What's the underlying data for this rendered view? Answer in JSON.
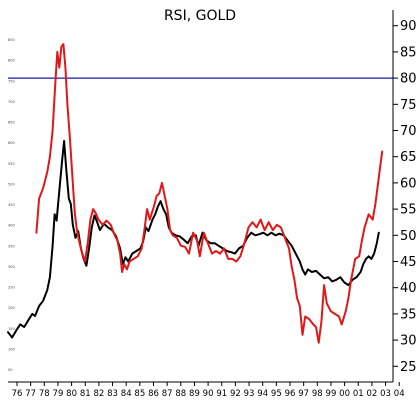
{
  "chart_data": {
    "type": "line",
    "title": "RSI, GOLD",
    "xlabel": "",
    "ylabel": "",
    "grid": false,
    "x_ticks": [
      "76",
      "77",
      "78",
      "79",
      "80",
      "81",
      "82",
      "83",
      "84",
      "85",
      "86",
      "87",
      "88",
      "89",
      "90",
      "91",
      "92",
      "93",
      "94",
      "95",
      "96",
      "97",
      "98",
      "99",
      "00",
      "01",
      "02",
      "03",
      "04"
    ],
    "x_range": [
      1975.9,
      2004.4
    ],
    "rsi_axis": {
      "range": [
        22,
        93
      ],
      "ticks": [
        25,
        30,
        35,
        40,
        45,
        50,
        55,
        60,
        65,
        70,
        75,
        80,
        85,
        90
      ]
    },
    "left_axis_ticks": [
      "850",
      "800",
      "750",
      "700",
      "650",
      "600",
      "550",
      "500",
      "450",
      "400",
      "350",
      "300",
      "250",
      "200",
      "150",
      "100",
      "50"
    ],
    "reference_line": {
      "value": 80,
      "color": "#1a1aaa"
    },
    "series": [
      {
        "color": "#000000",
        "points": [
          [
            1975.9,
            31.5
          ],
          [
            1976.2,
            30.5
          ],
          [
            1976.5,
            31.8
          ],
          [
            1976.8,
            33.0
          ],
          [
            1977.1,
            32.5
          ],
          [
            1977.4,
            33.8
          ],
          [
            1977.7,
            35.0
          ],
          [
            1977.9,
            34.6
          ],
          [
            1978.2,
            36.5
          ],
          [
            1978.5,
            37.5
          ],
          [
            1978.8,
            39.5
          ],
          [
            1979.0,
            42.0
          ],
          [
            1979.2,
            48.0
          ],
          [
            1979.35,
            54.0
          ],
          [
            1979.5,
            52.8
          ],
          [
            1979.7,
            58.5
          ],
          [
            1979.9,
            64.0
          ],
          [
            1980.05,
            68.0
          ],
          [
            1980.2,
            63.0
          ],
          [
            1980.4,
            57.0
          ],
          [
            1980.55,
            56.0
          ],
          [
            1980.7,
            52.0
          ],
          [
            1980.9,
            49.5
          ],
          [
            1981.1,
            50.8
          ],
          [
            1981.3,
            47.5
          ],
          [
            1981.5,
            45.5
          ],
          [
            1981.7,
            44.2
          ],
          [
            1981.9,
            47.5
          ],
          [
            1982.1,
            51.5
          ],
          [
            1982.3,
            53.8
          ],
          [
            1982.5,
            52.5
          ],
          [
            1982.7,
            51.0
          ],
          [
            1983.0,
            52.2
          ],
          [
            1983.3,
            51.5
          ],
          [
            1983.6,
            51.0
          ],
          [
            1983.9,
            49.8
          ],
          [
            1984.2,
            47.5
          ],
          [
            1984.4,
            44.5
          ],
          [
            1984.6,
            45.8
          ],
          [
            1984.8,
            45.0
          ],
          [
            1985.1,
            46.5
          ],
          [
            1985.4,
            47.0
          ],
          [
            1985.7,
            47.5
          ],
          [
            1985.9,
            48.8
          ],
          [
            1986.1,
            51.5
          ],
          [
            1986.3,
            50.8
          ],
          [
            1986.6,
            53.0
          ],
          [
            1986.8,
            54.0
          ],
          [
            1987.0,
            55.5
          ],
          [
            1987.2,
            56.5
          ],
          [
            1987.4,
            55.0
          ],
          [
            1987.6,
            54.0
          ],
          [
            1987.8,
            51.5
          ],
          [
            1988.0,
            50.5
          ],
          [
            1988.3,
            50.0
          ],
          [
            1988.6,
            49.8
          ],
          [
            1988.9,
            49.2
          ],
          [
            1989.2,
            48.5
          ],
          [
            1989.5,
            49.8
          ],
          [
            1989.8,
            50.0
          ],
          [
            1990.0,
            48.0
          ],
          [
            1990.3,
            50.5
          ],
          [
            1990.6,
            49.0
          ],
          [
            1990.9,
            48.5
          ],
          [
            1991.2,
            48.5
          ],
          [
            1991.5,
            48.0
          ],
          [
            1991.8,
            47.5
          ],
          [
            1992.1,
            47.0
          ],
          [
            1992.4,
            46.8
          ],
          [
            1992.7,
            46.5
          ],
          [
            1993.0,
            47.5
          ],
          [
            1993.3,
            48.0
          ],
          [
            1993.6,
            49.5
          ],
          [
            1993.9,
            50.5
          ],
          [
            1994.2,
            50.0
          ],
          [
            1994.5,
            50.2
          ],
          [
            1994.8,
            50.5
          ],
          [
            1995.1,
            50.0
          ],
          [
            1995.4,
            50.5
          ],
          [
            1995.7,
            50.0
          ],
          [
            1996.0,
            50.3
          ],
          [
            1996.3,
            50.0
          ],
          [
            1996.6,
            49.0
          ],
          [
            1996.9,
            48.0
          ],
          [
            1997.2,
            46.5
          ],
          [
            1997.5,
            45.0
          ],
          [
            1997.7,
            43.5
          ],
          [
            1997.9,
            42.5
          ],
          [
            1998.1,
            43.5
          ],
          [
            1998.4,
            43.0
          ],
          [
            1998.7,
            43.2
          ],
          [
            1999.0,
            42.5
          ],
          [
            1999.3,
            41.8
          ],
          [
            1999.6,
            42.0
          ],
          [
            1999.9,
            41.2
          ],
          [
            2000.2,
            41.5
          ],
          [
            2000.5,
            42.0
          ],
          [
            2000.8,
            41.0
          ],
          [
            2001.1,
            40.5
          ],
          [
            2001.4,
            41.5
          ],
          [
            2001.7,
            42.0
          ],
          [
            2002.0,
            43.0
          ],
          [
            2002.2,
            44.5
          ],
          [
            2002.4,
            45.5
          ],
          [
            2002.6,
            46.0
          ],
          [
            2002.8,
            45.5
          ],
          [
            2003.0,
            46.5
          ],
          [
            2003.2,
            48.5
          ],
          [
            2003.35,
            50.5
          ]
        ]
      },
      {
        "color": "#e01818",
        "points": [
          [
            1978.0,
            50.5
          ],
          [
            1978.2,
            57.0
          ],
          [
            1978.5,
            59.0
          ],
          [
            1978.8,
            62.0
          ],
          [
            1979.0,
            65.0
          ],
          [
            1979.2,
            70.0
          ],
          [
            1979.4,
            79.0
          ],
          [
            1979.55,
            85.0
          ],
          [
            1979.7,
            82.0
          ],
          [
            1979.85,
            86.0
          ],
          [
            1980.0,
            86.5
          ],
          [
            1980.15,
            82.0
          ],
          [
            1980.3,
            75.0
          ],
          [
            1980.5,
            68.0
          ],
          [
            1980.7,
            60.0
          ],
          [
            1980.85,
            54.0
          ],
          [
            1981.0,
            51.0
          ],
          [
            1981.2,
            48.5
          ],
          [
            1981.4,
            46.5
          ],
          [
            1981.6,
            45.0
          ],
          [
            1981.8,
            48.5
          ],
          [
            1982.0,
            53.0
          ],
          [
            1982.2,
            55.0
          ],
          [
            1982.4,
            54.2
          ],
          [
            1982.6,
            53.0
          ],
          [
            1982.9,
            52.0
          ],
          [
            1983.2,
            52.8
          ],
          [
            1983.5,
            52.0
          ],
          [
            1983.8,
            50.0
          ],
          [
            1984.0,
            49.0
          ],
          [
            1984.2,
            46.5
          ],
          [
            1984.35,
            43.0
          ],
          [
            1984.5,
            44.5
          ],
          [
            1984.7,
            43.5
          ],
          [
            1984.9,
            45.0
          ],
          [
            1985.2,
            45.5
          ],
          [
            1985.5,
            46.0
          ],
          [
            1985.8,
            47.5
          ],
          [
            1986.0,
            51.0
          ],
          [
            1986.2,
            55.0
          ],
          [
            1986.4,
            53.0
          ],
          [
            1986.7,
            55.5
          ],
          [
            1986.9,
            57.5
          ],
          [
            1987.1,
            58.0
          ],
          [
            1987.3,
            60.0
          ],
          [
            1987.5,
            57.5
          ],
          [
            1987.7,
            55.0
          ],
          [
            1987.9,
            51.0
          ],
          [
            1988.1,
            50.0
          ],
          [
            1988.4,
            49.5
          ],
          [
            1988.7,
            48.0
          ],
          [
            1989.0,
            47.8
          ],
          [
            1989.3,
            46.5
          ],
          [
            1989.6,
            50.5
          ],
          [
            1989.9,
            49.0
          ],
          [
            1990.1,
            46.0
          ],
          [
            1990.4,
            50.5
          ],
          [
            1990.7,
            48.5
          ],
          [
            1991.0,
            46.5
          ],
          [
            1991.3,
            47.0
          ],
          [
            1991.6,
            46.5
          ],
          [
            1991.9,
            47.5
          ],
          [
            1992.2,
            45.5
          ],
          [
            1992.5,
            45.5
          ],
          [
            1992.8,
            45.0
          ],
          [
            1993.1,
            46.0
          ],
          [
            1993.4,
            48.5
          ],
          [
            1993.7,
            51.5
          ],
          [
            1994.0,
            52.5
          ],
          [
            1994.3,
            51.5
          ],
          [
            1994.6,
            53.0
          ],
          [
            1994.9,
            51.0
          ],
          [
            1995.2,
            52.5
          ],
          [
            1995.5,
            51.0
          ],
          [
            1995.8,
            52.0
          ],
          [
            1996.1,
            51.5
          ],
          [
            1996.4,
            49.5
          ],
          [
            1996.7,
            47.5
          ],
          [
            1996.9,
            44.0
          ],
          [
            1997.1,
            41.5
          ],
          [
            1997.3,
            38.0
          ],
          [
            1997.5,
            36.5
          ],
          [
            1997.7,
            31.0
          ],
          [
            1997.9,
            34.5
          ],
          [
            1998.2,
            34.0
          ],
          [
            1998.5,
            33.0
          ],
          [
            1998.7,
            32.5
          ],
          [
            1998.9,
            29.5
          ],
          [
            1999.1,
            33.5
          ],
          [
            1999.3,
            40.5
          ],
          [
            1999.5,
            37.0
          ],
          [
            1999.8,
            35.5
          ],
          [
            2000.1,
            35.0
          ],
          [
            2000.4,
            34.5
          ],
          [
            2000.6,
            33.0
          ],
          [
            2000.9,
            35.5
          ],
          [
            2001.1,
            38.0
          ],
          [
            2001.3,
            41.5
          ],
          [
            2001.6,
            45.5
          ],
          [
            2001.9,
            46.0
          ],
          [
            2002.1,
            49.0
          ],
          [
            2002.3,
            51.5
          ],
          [
            2002.6,
            54.0
          ],
          [
            2002.9,
            53.0
          ],
          [
            2003.1,
            56.0
          ],
          [
            2003.3,
            60.0
          ],
          [
            2003.5,
            64.0
          ],
          [
            2003.6,
            66.0
          ]
        ]
      }
    ]
  }
}
